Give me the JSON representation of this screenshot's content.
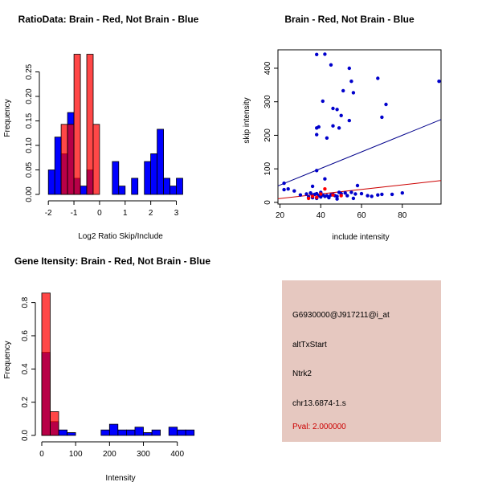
{
  "chart_data": [
    {
      "type": "bar",
      "title": "RatioData: Brain - Red, Not Brain - Blue",
      "xlabel": "Log2 Ratio Skip/Include",
      "ylabel": "Frequency",
      "xlim": [
        -2.1,
        3.8
      ],
      "ylim": [
        0,
        0.3
      ],
      "xticks": [
        -2,
        -1,
        0,
        1,
        2,
        3
      ],
      "yticks": [
        0.0,
        0.05,
        0.1,
        0.15,
        0.2,
        0.25
      ],
      "ytick_labels": [
        "0.00",
        "0.05",
        "0.10",
        "0.15",
        "0.20",
        "0.25"
      ],
      "series": [
        {
          "name": "Not Brain",
          "color": "#0000ff",
          "bins": [
            [
              -2.0,
              -1.75,
              0.05
            ],
            [
              -1.75,
              -1.5,
              0.117
            ],
            [
              -1.5,
              -1.25,
              0.083
            ],
            [
              -1.25,
              -1.0,
              0.167
            ],
            [
              -1.0,
              -0.75,
              0.033
            ],
            [
              -0.75,
              -0.5,
              0.017
            ],
            [
              -0.5,
              -0.25,
              0.05
            ],
            [
              0.25,
              0.5,
              0.0
            ],
            [
              0.5,
              0.75,
              0.067
            ],
            [
              0.75,
              1.0,
              0.017
            ],
            [
              1.25,
              1.5,
              0.033
            ],
            [
              1.75,
              2.0,
              0.067
            ],
            [
              2.0,
              2.25,
              0.083
            ],
            [
              2.25,
              2.5,
              0.133
            ],
            [
              2.5,
              2.75,
              0.033
            ],
            [
              2.75,
              3.0,
              0.017
            ],
            [
              3.0,
              3.25,
              0.033
            ]
          ]
        },
        {
          "name": "Brain",
          "color": "#ff0000",
          "bins": [
            [
              -1.5,
              -1.25,
              0.143
            ],
            [
              -1.25,
              -1.0,
              0.143
            ],
            [
              -1.0,
              -0.75,
              0.286
            ],
            [
              -0.5,
              -0.25,
              0.286
            ],
            [
              -0.25,
              0.0,
              0.143
            ]
          ]
        }
      ]
    },
    {
      "type": "scatter",
      "title": "Brain - Red, Not Brain - Blue",
      "xlabel": "include intensity",
      "ylabel": "skip intensity",
      "xlim": [
        19,
        99
      ],
      "ylim": [
        -5,
        455
      ],
      "xticks": [
        20,
        40,
        60,
        80
      ],
      "yticks": [
        0,
        100,
        200,
        300,
        400
      ],
      "series": [
        {
          "name": "Not Brain",
          "color": "#0000cc",
          "points": [
            [
              38,
              441
            ],
            [
              42,
              442
            ],
            [
              45,
              410
            ],
            [
              54,
              400
            ],
            [
              98,
              361
            ],
            [
              55,
              361
            ],
            [
              68,
              370
            ],
            [
              56,
              327
            ],
            [
              51,
              333
            ],
            [
              41,
              302
            ],
            [
              46,
              280
            ],
            [
              48,
              277
            ],
            [
              72,
              292
            ],
            [
              50,
              259
            ],
            [
              70,
              254
            ],
            [
              54,
              244
            ],
            [
              46,
              228
            ],
            [
              39,
              225
            ],
            [
              38,
              222
            ],
            [
              49,
              222
            ],
            [
              38,
              202
            ],
            [
              43,
              192
            ],
            [
              38,
              95
            ],
            [
              22,
              57
            ],
            [
              36,
              48
            ],
            [
              58,
              50
            ],
            [
              42,
              70
            ],
            [
              22,
              38
            ],
            [
              24,
              40
            ],
            [
              27,
              34
            ],
            [
              30,
              22
            ],
            [
              33,
              25
            ],
            [
              35,
              28
            ],
            [
              36,
              22
            ],
            [
              37,
              24
            ],
            [
              38,
              26
            ],
            [
              39,
              20
            ],
            [
              40,
              30
            ],
            [
              41,
              22
            ],
            [
              42,
              18
            ],
            [
              43,
              20
            ],
            [
              44,
              16
            ],
            [
              45,
              22
            ],
            [
              46,
              24
            ],
            [
              47,
              20
            ],
            [
              48,
              18
            ],
            [
              49,
              30
            ],
            [
              50,
              26
            ],
            [
              52,
              28
            ],
            [
              53,
              20
            ],
            [
              55,
              30
            ],
            [
              57,
              25
            ],
            [
              60,
              26
            ],
            [
              63,
              20
            ],
            [
              65,
              18
            ],
            [
              68,
              22
            ],
            [
              70,
              24
            ],
            [
              75,
              24
            ],
            [
              80,
              28
            ],
            [
              34,
              16
            ],
            [
              36,
              14
            ],
            [
              38,
              12
            ],
            [
              40,
              16
            ],
            [
              44,
              14
            ],
            [
              48,
              10
            ],
            [
              56,
              12
            ]
          ]
        },
        {
          "name": "Brain",
          "color": "#ff0000",
          "points": [
            [
              42,
              40
            ],
            [
              36,
              18
            ],
            [
              40,
              25
            ],
            [
              46,
              22
            ],
            [
              38,
              15
            ],
            [
              34,
              12
            ],
            [
              50,
              20
            ]
          ]
        }
      ],
      "fit_lines": [
        {
          "name": "Not Brain fit",
          "color": "#00008b",
          "x": [
            19,
            99
          ],
          "y": [
            49,
            247
          ]
        },
        {
          "name": "Brain fit",
          "color": "#cc0000",
          "x": [
            19,
            99
          ],
          "y": [
            11,
            65
          ]
        }
      ]
    },
    {
      "type": "bar",
      "title": "Gene Itensity: Brain - Red, Not Brain - Blue",
      "xlabel": "Intensity",
      "ylabel": "Frequency",
      "xlim": [
        0,
        460
      ],
      "ylim": [
        0,
        0.89
      ],
      "xticks": [
        0,
        100,
        200,
        300,
        400
      ],
      "yticks": [
        0.0,
        0.2,
        0.4,
        0.6,
        0.8
      ],
      "ytick_labels": [
        "0.0",
        "0.2",
        "0.4",
        "0.6",
        "0.8"
      ],
      "series": [
        {
          "name": "Not Brain",
          "color": "#0000ff",
          "bins": [
            [
              0,
              25,
              0.5
            ],
            [
              25,
              50,
              0.083
            ],
            [
              50,
              75,
              0.033
            ],
            [
              75,
              100,
              0.017
            ],
            [
              200,
              225,
              0.067
            ],
            [
              175,
              200,
              0.033
            ],
            [
              225,
              250,
              0.033
            ],
            [
              250,
              275,
              0.033
            ],
            [
              275,
              300,
              0.05
            ],
            [
              300,
              325,
              0.017
            ],
            [
              325,
              350,
              0.033
            ],
            [
              350,
              375,
              0.0
            ],
            [
              375,
              400,
              0.05
            ],
            [
              400,
              425,
              0.033
            ],
            [
              425,
              450,
              0.033
            ]
          ]
        },
        {
          "name": "Brain",
          "color": "#ff0000",
          "bins": [
            [
              0,
              25,
              0.857
            ],
            [
              25,
              50,
              0.143
            ]
          ]
        }
      ]
    }
  ],
  "info": {
    "probe": "G6930000@J917211@i_at",
    "event": "altTxStart",
    "gene": "Ntrk2",
    "location": "chr13.6874-1.s",
    "pval": "Pval: 2.000000",
    "pval_color": "#cc0000"
  }
}
